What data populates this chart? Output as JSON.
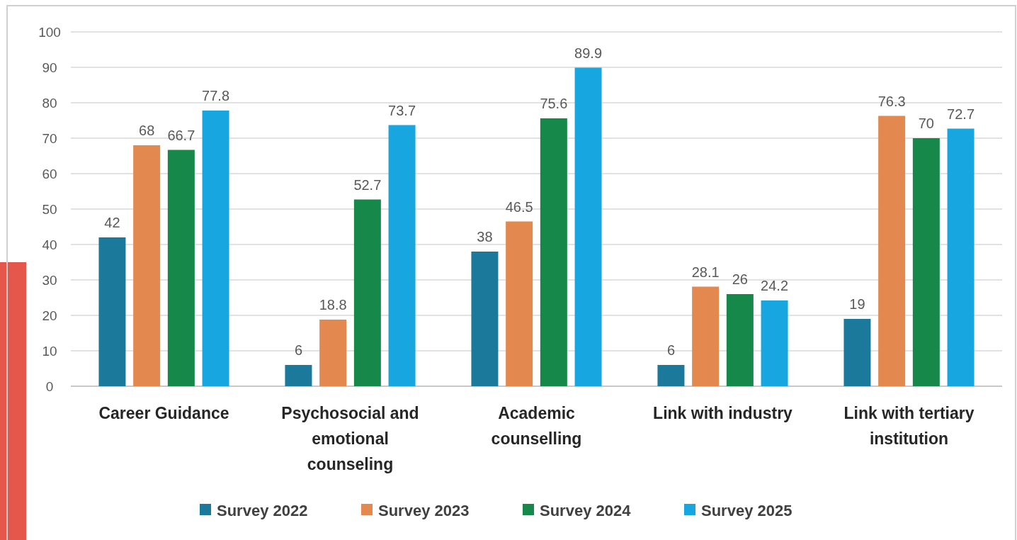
{
  "chart_data": {
    "type": "bar",
    "categories": [
      "Career Guidance",
      "Psychosocial and emotional counseling",
      "Academic counselling",
      "Link with industry",
      "Link with tertiary institution"
    ],
    "series": [
      {
        "name": "Survey 2022",
        "color": "#1b7a9c",
        "values": [
          42,
          6,
          38,
          6,
          19
        ]
      },
      {
        "name": "Survey 2023",
        "color": "#e3894f",
        "values": [
          68,
          18.8,
          46.5,
          28.1,
          76.3
        ]
      },
      {
        "name": "Survey 2024",
        "color": "#16884a",
        "values": [
          66.7,
          52.7,
          75.6,
          26,
          70
        ]
      },
      {
        "name": "Survey 2025",
        "color": "#17a6e0",
        "values": [
          77.8,
          73.7,
          89.9,
          24.2,
          72.7
        ]
      }
    ],
    "ylim": [
      0,
      100
    ],
    "yticks": [
      0,
      10,
      20,
      30,
      40,
      50,
      60,
      70,
      80,
      90,
      100
    ],
    "grid": "y",
    "legend": "bottom",
    "data_labels": true
  }
}
